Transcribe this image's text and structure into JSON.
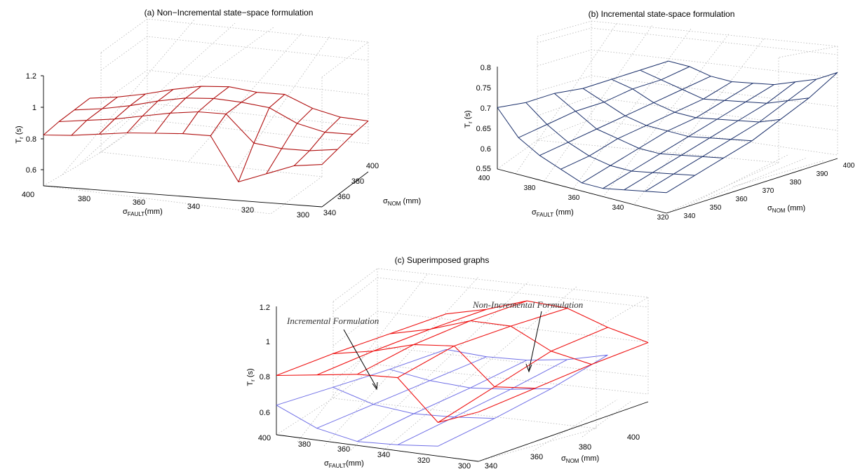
{
  "figure": {
    "panels": [
      {
        "id": "a",
        "title": "(a) Non−Incremental state−space formulation",
        "zlabel": "T",
        "zlabel_sub": "r",
        "zlabel_unit": " (s)",
        "xlabel": "σ",
        "xlabel_sub": "FAULT",
        "xlabel_unit": "(mm)",
        "ylabel": "σ",
        "ylabel_sub": "NOM",
        "ylabel_unit": " (mm)",
        "z_ticks": [
          "1.2",
          "1",
          "0.8",
          "0.6"
        ],
        "x_ticks": [
          "400",
          "380",
          "360",
          "340",
          "320",
          "300"
        ],
        "y_ticks": [
          "340",
          "360",
          "380",
          "400"
        ]
      },
      {
        "id": "b",
        "title": "(b) Incremental state-space formulation",
        "zlabel": "T",
        "zlabel_sub": "r",
        "zlabel_unit": " (s)",
        "xlabel": "σ",
        "xlabel_sub": "FAULT",
        "xlabel_unit": " (mm)",
        "ylabel": "σ",
        "ylabel_sub": "NOM",
        "ylabel_unit": " (mm)",
        "z_ticks": [
          "0.8",
          "0.75",
          "0.7",
          "0.65",
          "0.6",
          "0.55"
        ],
        "x_ticks": [
          "400",
          "380",
          "360",
          "340",
          "320"
        ],
        "y_ticks": [
          "340",
          "350",
          "360",
          "370",
          "380",
          "390",
          "400"
        ]
      },
      {
        "id": "c",
        "title": "(c) Superimposed graphs",
        "zlabel": "T",
        "zlabel_sub": "r",
        "zlabel_unit": " (s)",
        "xlabel": "σ",
        "xlabel_sub": "FAULT",
        "xlabel_unit": "(mm)",
        "ylabel": "σ",
        "ylabel_sub": "NOM",
        "ylabel_unit": " (mm)",
        "z_ticks": [
          "1.2",
          "1",
          "0.8",
          "0.6"
        ],
        "x_ticks": [
          "400",
          "380",
          "360",
          "340",
          "320",
          "300"
        ],
        "y_ticks": [
          "340",
          "360",
          "380",
          "400"
        ],
        "annotations": [
          "Incremental Formulation",
          "Non-Incremental Formulation"
        ]
      }
    ],
    "colors": {
      "non_incremental_a": "#b01010",
      "incremental_b": "#1a2f6a",
      "incremental_c": "#6f6fe6",
      "non_incremental_c": "#ee1111"
    }
  },
  "chart_data": [
    {
      "type": "surface3d",
      "title": "(a) Non−Incremental state−space formulation",
      "series": [
        {
          "x_fault_mm": [
            400,
            390,
            380,
            370,
            360,
            350,
            340,
            330,
            320,
            310,
            300
          ],
          "y_nom_mm": [
            340,
            360,
            380,
            400
          ],
          "z_Tr_s": [
            [
              0.85,
              0.86,
              0.86,
              0.86
            ],
            [
              0.86,
              0.88,
              0.88,
              0.88
            ],
            [
              0.88,
              0.9,
              0.91,
              0.91
            ],
            [
              0.9,
              0.93,
              0.95,
              0.95
            ],
            [
              0.91,
              0.96,
              0.98,
              0.98
            ],
            [
              0.92,
              0.98,
              0.99,
              0.99
            ],
            [
              0.92,
              0.98,
              0.98,
              0.97
            ],
            [
              0.66,
              0.82,
              0.96,
              0.97
            ],
            [
              0.72,
              0.8,
              0.88,
              0.9
            ],
            [
              0.78,
              0.8,
              0.84,
              0.86
            ],
            [
              0.8,
              0.82,
              0.84,
              0.85
            ]
          ]
        }
      ],
      "xlim": [
        300,
        400
      ],
      "ylim": [
        340,
        400
      ],
      "zlim": [
        0.55,
        1.2
      ]
    },
    {
      "type": "surface3d",
      "title": "(b) Incremental state-space formulation",
      "series": [
        {
          "x_fault_mm": [
            400,
            390,
            380,
            370,
            360,
            350,
            340,
            330,
            320
          ],
          "y_nom_mm": [
            340,
            350,
            360,
            370,
            380,
            390,
            400
          ],
          "z_Tr_s": [
            [
              0.7,
              0.69,
              0.69,
              0.68,
              0.68,
              0.68,
              0.68
            ],
            [
              0.64,
              0.65,
              0.66,
              0.66,
              0.67,
              0.67,
              0.68
            ],
            [
              0.61,
              0.62,
              0.63,
              0.64,
              0.65,
              0.66,
              0.67
            ],
            [
              0.59,
              0.6,
              0.62,
              0.63,
              0.64,
              0.65,
              0.67
            ],
            [
              0.57,
              0.59,
              0.61,
              0.63,
              0.64,
              0.66,
              0.68
            ],
            [
              0.57,
              0.59,
              0.61,
              0.63,
              0.65,
              0.67,
              0.69
            ],
            [
              0.58,
              0.6,
              0.62,
              0.64,
              0.66,
              0.68,
              0.71
            ],
            [
              0.59,
              0.61,
              0.63,
              0.65,
              0.67,
              0.7,
              0.73
            ],
            [
              0.6,
              0.62,
              0.64,
              0.66,
              0.69,
              0.72,
              0.76
            ]
          ]
        }
      ],
      "xlim": [
        320,
        400
      ],
      "ylim": [
        340,
        400
      ],
      "zlim": [
        0.55,
        0.8
      ]
    },
    {
      "type": "surface3d",
      "title": "(c) Superimposed graphs",
      "series": [
        {
          "name": "Incremental Formulation",
          "x_fault_mm": [
            400,
            380,
            360,
            340,
            320
          ],
          "y_nom_mm": [
            340,
            360,
            380,
            400
          ],
          "z_Tr_s": [
            [
              0.7,
              0.69,
              0.68,
              0.68
            ],
            [
              0.61,
              0.63,
              0.65,
              0.67
            ],
            [
              0.57,
              0.61,
              0.64,
              0.68
            ],
            [
              0.58,
              0.62,
              0.66,
              0.71
            ],
            [
              0.6,
              0.64,
              0.69,
              0.76
            ]
          ]
        },
        {
          "name": "Non-Incremental Formulation",
          "x_fault_mm": [
            400,
            380,
            360,
            340,
            320,
            300
          ],
          "y_nom_mm": [
            340,
            360,
            380,
            400
          ],
          "z_Tr_s": [
            [
              0.85,
              0.86,
              0.86,
              0.86
            ],
            [
              0.88,
              0.9,
              0.91,
              0.91
            ],
            [
              0.91,
              0.96,
              0.98,
              0.98
            ],
            [
              0.92,
              0.98,
              0.98,
              0.97
            ],
            [
              0.72,
              0.8,
              0.88,
              0.9
            ],
            [
              0.8,
              0.82,
              0.84,
              0.85
            ]
          ]
        }
      ],
      "xlim": [
        300,
        400
      ],
      "ylim": [
        340,
        400
      ],
      "zlim": [
        0.55,
        1.2
      ]
    }
  ]
}
